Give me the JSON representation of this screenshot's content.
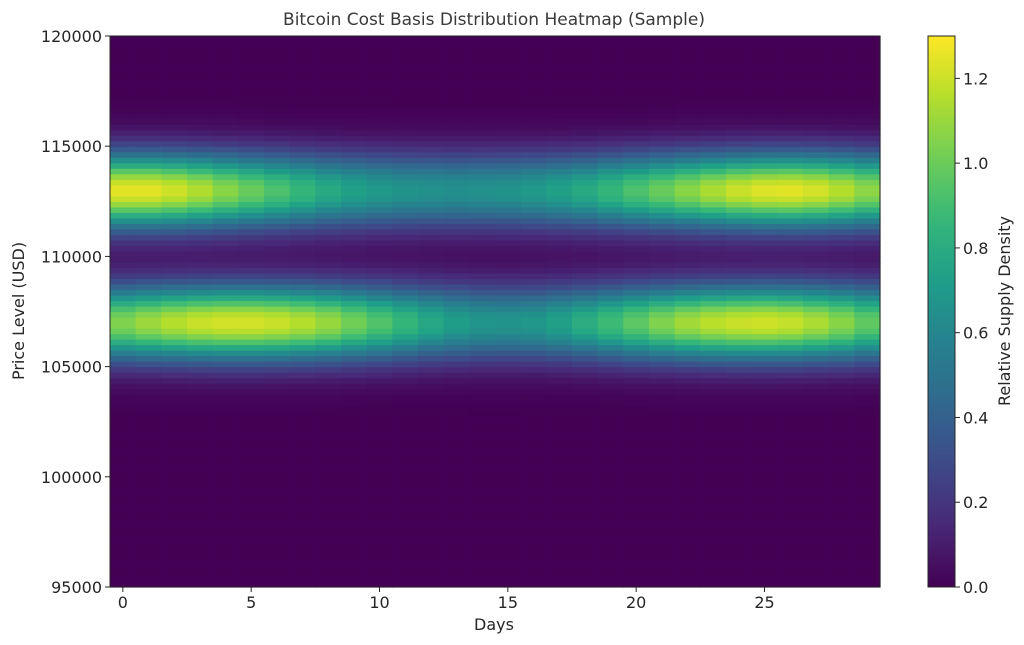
{
  "chart_data": {
    "type": "heatmap",
    "title": "Bitcoin Cost Basis Distribution Heatmap (Sample)",
    "xlabel": "Days",
    "ylabel": "Price Level (USD)",
    "colorbar_label": "Relative Supply Density",
    "colormap": "viridis",
    "x": {
      "range": [
        -0.5,
        29.5
      ],
      "days": 30,
      "ticks": [
        0,
        5,
        10,
        15,
        20,
        25
      ],
      "tick_labels": [
        "0",
        "5",
        "10",
        "15",
        "20",
        "25"
      ]
    },
    "y": {
      "range": [
        95000,
        120000
      ],
      "ticks": [
        95000,
        100000,
        105000,
        110000,
        115000,
        120000
      ],
      "tick_labels": [
        "95000",
        "100000",
        "105000",
        "110000",
        "115000",
        "120000"
      ]
    },
    "colorbar": {
      "range": [
        0,
        1.3
      ],
      "ticks": [
        0.0,
        0.2,
        0.4,
        0.6,
        0.8,
        1.0,
        1.2
      ],
      "tick_labels": [
        "0.0",
        "0.2",
        "0.4",
        "0.6",
        "0.8",
        "1.0",
        "1.2"
      ]
    },
    "bands": [
      {
        "center_price": 113000,
        "width_usd": 1200,
        "peak_density_by_day": [
          1.25,
          1.25,
          1.21,
          1.15,
          1.07,
          1.0,
          0.93,
          0.86,
          0.79,
          0.74,
          0.7,
          0.67,
          0.66,
          0.65,
          0.66,
          0.67,
          0.7,
          0.74,
          0.79,
          0.86,
          0.93,
          1.0,
          1.07,
          1.14,
          1.2,
          1.24,
          1.25,
          1.22,
          1.16,
          1.08
        ]
      },
      {
        "center_price": 107000,
        "width_usd": 1200,
        "peak_density_by_day": [
          1.05,
          1.11,
          1.16,
          1.2,
          1.22,
          1.22,
          1.2,
          1.16,
          1.1,
          1.02,
          0.94,
          0.86,
          0.78,
          0.72,
          0.68,
          0.67,
          0.69,
          0.74,
          0.81,
          0.89,
          0.97,
          1.05,
          1.12,
          1.17,
          1.2,
          1.21,
          1.19,
          1.14,
          1.07,
          0.98
        ]
      }
    ],
    "grid": false,
    "legend": "colorbar-right"
  }
}
